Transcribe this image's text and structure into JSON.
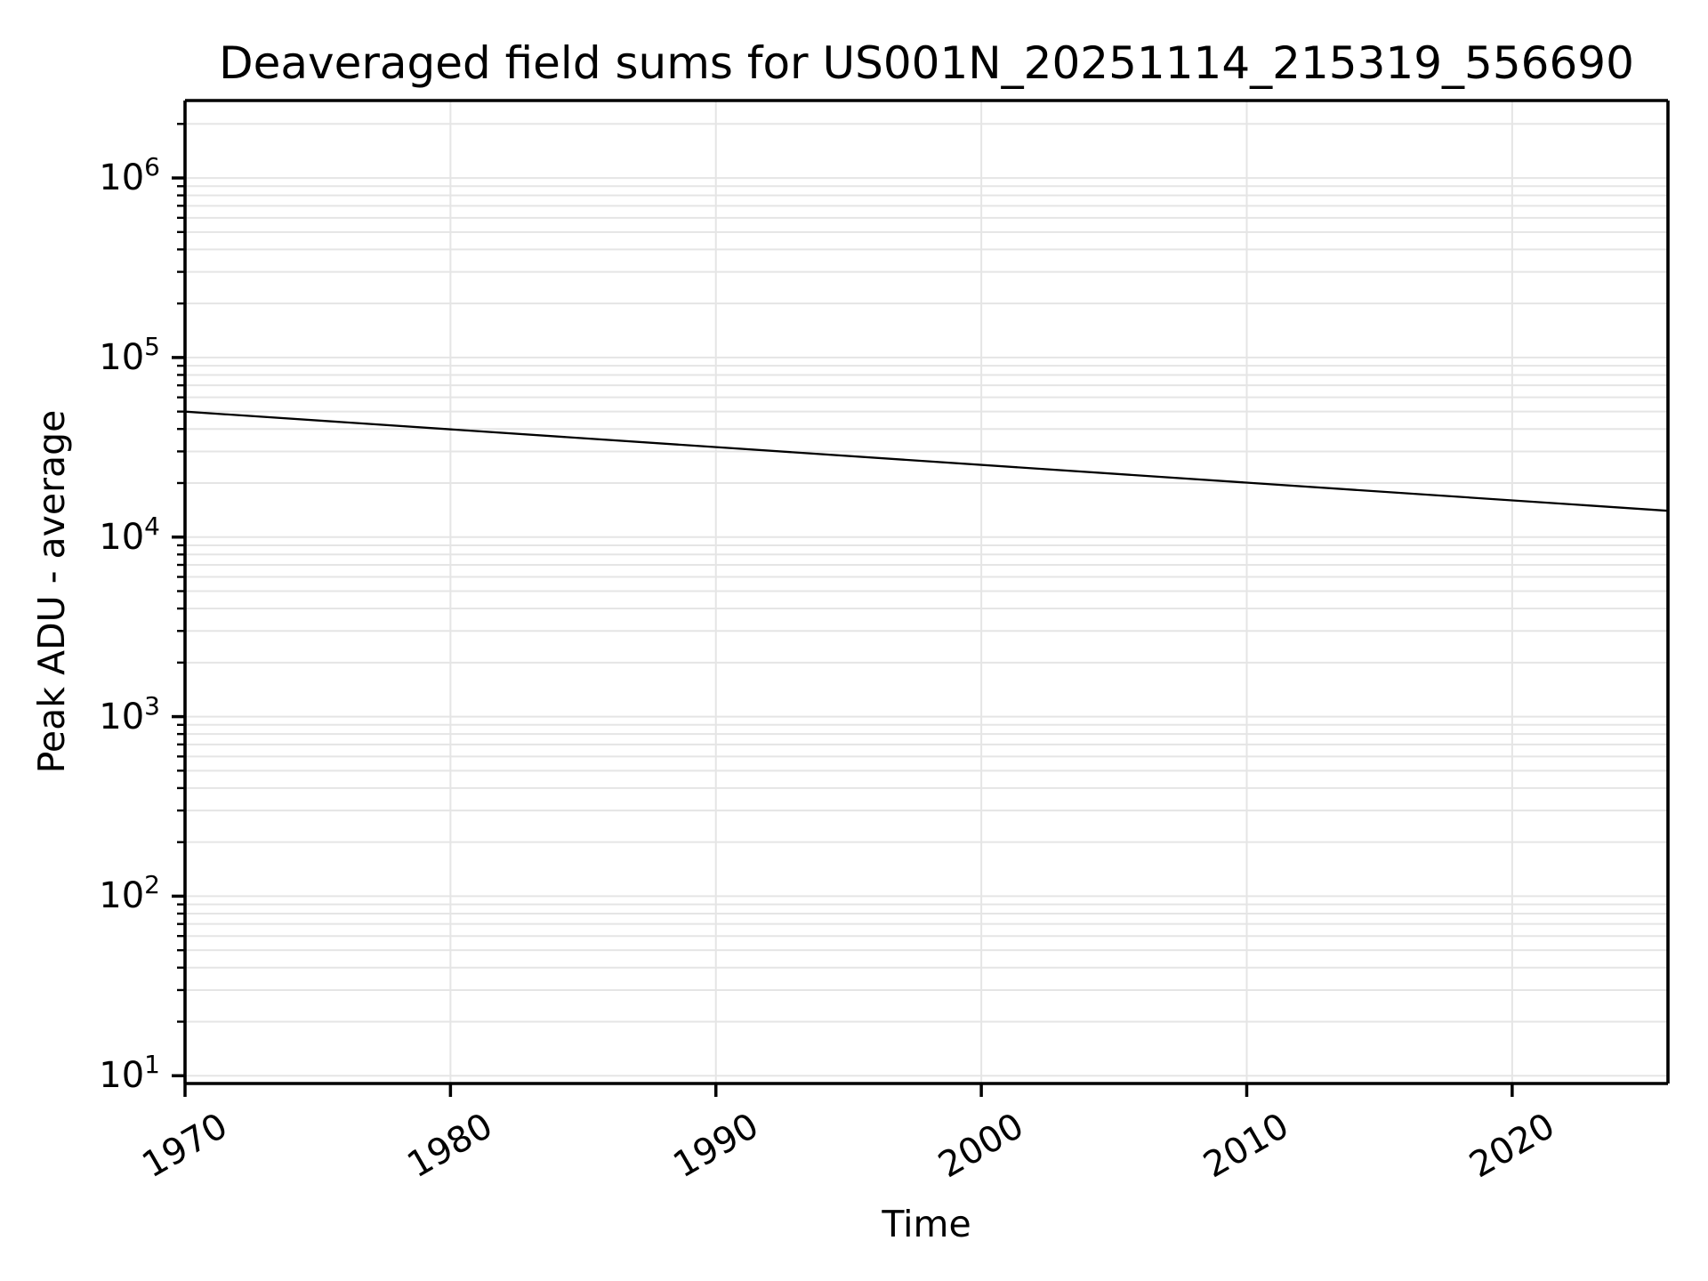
{
  "title": "Deaveraged field sums for US001N_20251114_215319_556690",
  "chart_data": {
    "type": "line",
    "title": "Deaveraged field sums for US001N_20251114_215319_556690",
    "xlabel": "Time",
    "ylabel": "Peak ADU - average",
    "yscale": "log",
    "xscale": "linear",
    "points": [
      {
        "x": 1970.0,
        "y": 50000
      },
      {
        "x": 2025.87,
        "y": 14000
      }
    ],
    "xlim": [
      1970.0,
      2025.87
    ],
    "ylim": [
      9.05,
      2700000
    ],
    "x_ticks": [
      1970,
      1980,
      1990,
      2000,
      2010,
      2020
    ],
    "y_tick_base": "10",
    "y_tick_exponents": [
      1,
      2,
      3,
      4,
      5,
      6
    ],
    "grid": "major-and-minor",
    "legend": false,
    "colors": {
      "line": "#000000",
      "grid": "#e5e5e5",
      "spine": "#000000",
      "tick": "#000000",
      "text": "#000000",
      "background": "#ffffff"
    }
  }
}
